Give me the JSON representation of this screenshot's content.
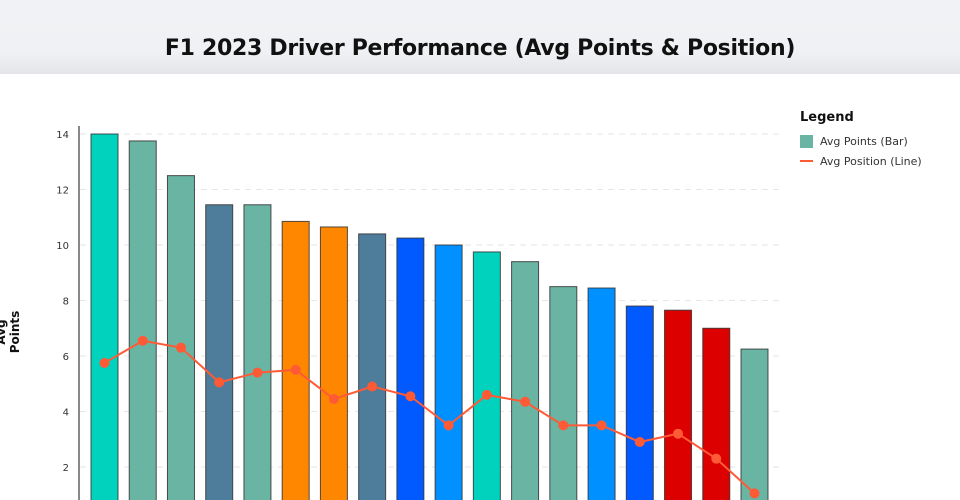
{
  "chart_data": {
    "type": "bar",
    "title": "F1 2023 Driver Performance (Avg Points & Position)",
    "xlabel": "",
    "ylabel": "Avg Points",
    "ylim": [
      0,
      14
    ],
    "yticks": [
      2,
      4,
      6,
      8,
      10,
      12,
      14
    ],
    "grid": true,
    "legend": {
      "title": "Legend",
      "placement": "top-right",
      "entries": [
        "Avg Points (Bar)",
        "Avg Position (Line)"
      ]
    },
    "series": [
      {
        "name": "Avg Points (Bar)",
        "type": "bar",
        "values": [
          14.0,
          13.75,
          12.5,
          11.45,
          11.45,
          10.85,
          10.65,
          10.4,
          10.25,
          10.0,
          9.75,
          9.4,
          8.5,
          8.45,
          7.8,
          7.65,
          7.0,
          6.25
        ],
        "colors": [
          "#00d2be",
          "#6ab4a3",
          "#6ab4a3",
          "#4e7c9b",
          "#6ab4a3",
          "#ff8700",
          "#ff8700",
          "#4e7c9b",
          "#005aff",
          "#0090ff",
          "#00d2be",
          "#6ab4a3",
          "#6ab4a3",
          "#0090ff",
          "#005aff",
          "#dc0000",
          "#dc0000",
          "#6ab4a3"
        ]
      },
      {
        "name": "Avg Position (Line)",
        "type": "line",
        "color": "#ff5a36",
        "values": [
          5.75,
          6.55,
          6.3,
          5.05,
          5.4,
          5.5,
          4.45,
          4.9,
          4.55,
          3.5,
          4.6,
          4.35,
          3.5,
          3.5,
          2.9,
          3.2,
          2.3,
          1.05
        ]
      }
    ]
  }
}
